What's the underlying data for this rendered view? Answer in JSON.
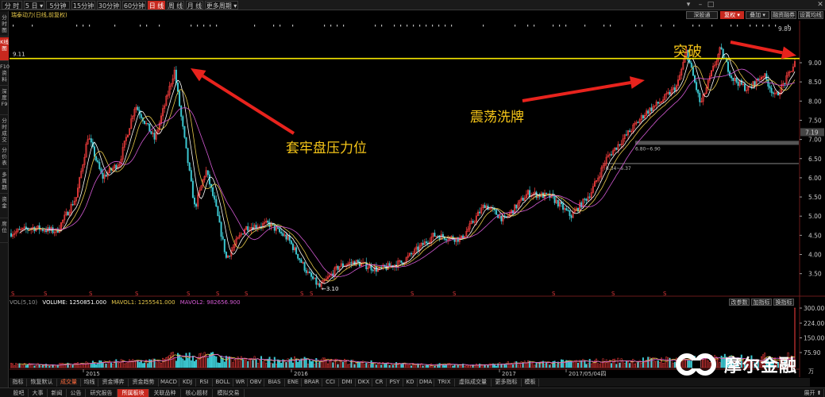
{
  "toolbar": {
    "periods": [
      "分 时",
      "5 日 ▾",
      "5分钟",
      "15分钟",
      "30分钟",
      "60分钟",
      "日 线",
      "周 线",
      "月 线",
      "更多周期 ▾"
    ],
    "active_period_index": 6
  },
  "subbar": {
    "stock_title": "瑞泰动力(日线,前复权)",
    "fq_label": "复权 ▾",
    "overlay_label": "叠加 ▾",
    "rongzi_label": "融资融券",
    "settings_label": "设置均线",
    "deep_label": "深股通"
  },
  "leftnav": [
    "分时图",
    "K线图",
    "F10资料",
    "深度F9",
    "分时成交",
    "分价表",
    "多周期",
    "资金",
    "席位"
  ],
  "leftnav_active_index": 1,
  "price_axis": {
    "labels": [
      "9.00",
      "8.50",
      "8.00",
      "7.50",
      "7.00",
      "6.50",
      "6.00",
      "5.50",
      "5.00",
      "4.50",
      "4.00",
      "3.50"
    ],
    "top_value": "9.89",
    "current_value": "7.19"
  },
  "chart_labels": {
    "hline_value": "9.11",
    "low_value": "3.10",
    "zone1": "6.80~6.90",
    "zone2": "6.34~6.37"
  },
  "annotations": {
    "resistance": "套牢盘压力位",
    "shakeout": "震荡洗牌",
    "breakout": "突破"
  },
  "volume": {
    "legend_prefix": "VOL(5,10)",
    "volume_label": "VOLUME: 1250851.000",
    "mavol1_label": "MAVOL1: 1255541.000",
    "mavol2_label": "MAVOL2: 982656.900",
    "param_button": "改参数",
    "add_indicator": "加指标",
    "switch_indicator": "换指标",
    "axis": [
      "300.00",
      "224.00",
      "150.00",
      "75.90"
    ],
    "unit": "万"
  },
  "time_axis": {
    "labels": [
      "2015",
      "2016",
      "2017",
      "2017/05/04四"
    ]
  },
  "indicator_tabs": [
    "指标",
    "恢复默认",
    "成交量",
    "均线",
    "资金博弈",
    "资金趋势",
    "MACD",
    "KDJ",
    "RSI",
    "BOLL",
    "WR",
    "OBV",
    "BIAS",
    "ENE",
    "BRAR",
    "CCI",
    "DMI",
    "DKX",
    "CR",
    "PSY",
    "KD",
    "DMA",
    "TRIX",
    "虚拟成交量",
    "更多指标",
    "模板"
  ],
  "indicator_active_index": 2,
  "bottom_tabs": [
    "股吧",
    "大事",
    "新闻",
    "公告",
    "研究报告",
    "所属板块",
    "关联品种",
    "核心题材",
    "模拟交易"
  ],
  "bottom_active_index": 5,
  "bottom_right": "展开 ⬆",
  "watermark": "摩尔金融",
  "colors": {
    "up": "#ff4040",
    "down": "#3cc8d2",
    "ma_white": "#ffffff",
    "ma_yellow": "#e6c84a",
    "hline": "#f5e600",
    "arrow": "#e8231d",
    "annotation": "#f5c518"
  },
  "icons": [
    "close-icon",
    "minimize-icon",
    "maximize-icon",
    "dropdown-icon"
  ],
  "chart_data": {
    "type": "candlestick",
    "ylim": [
      3.1,
      9.89
    ],
    "key_levels": {
      "resistance": 9.11,
      "low": 3.1,
      "high": 9.89
    },
    "segments": [
      {
        "from": "2014-09",
        "to": "2015-06",
        "trend": "up",
        "start": 4.5,
        "peak": 8.9
      },
      {
        "from": "2015-06",
        "to": "2016-06",
        "trend": "down",
        "end": 3.1
      },
      {
        "from": "2016-06",
        "to": "2017-05",
        "trend": "up",
        "end": 9.89
      }
    ]
  }
}
